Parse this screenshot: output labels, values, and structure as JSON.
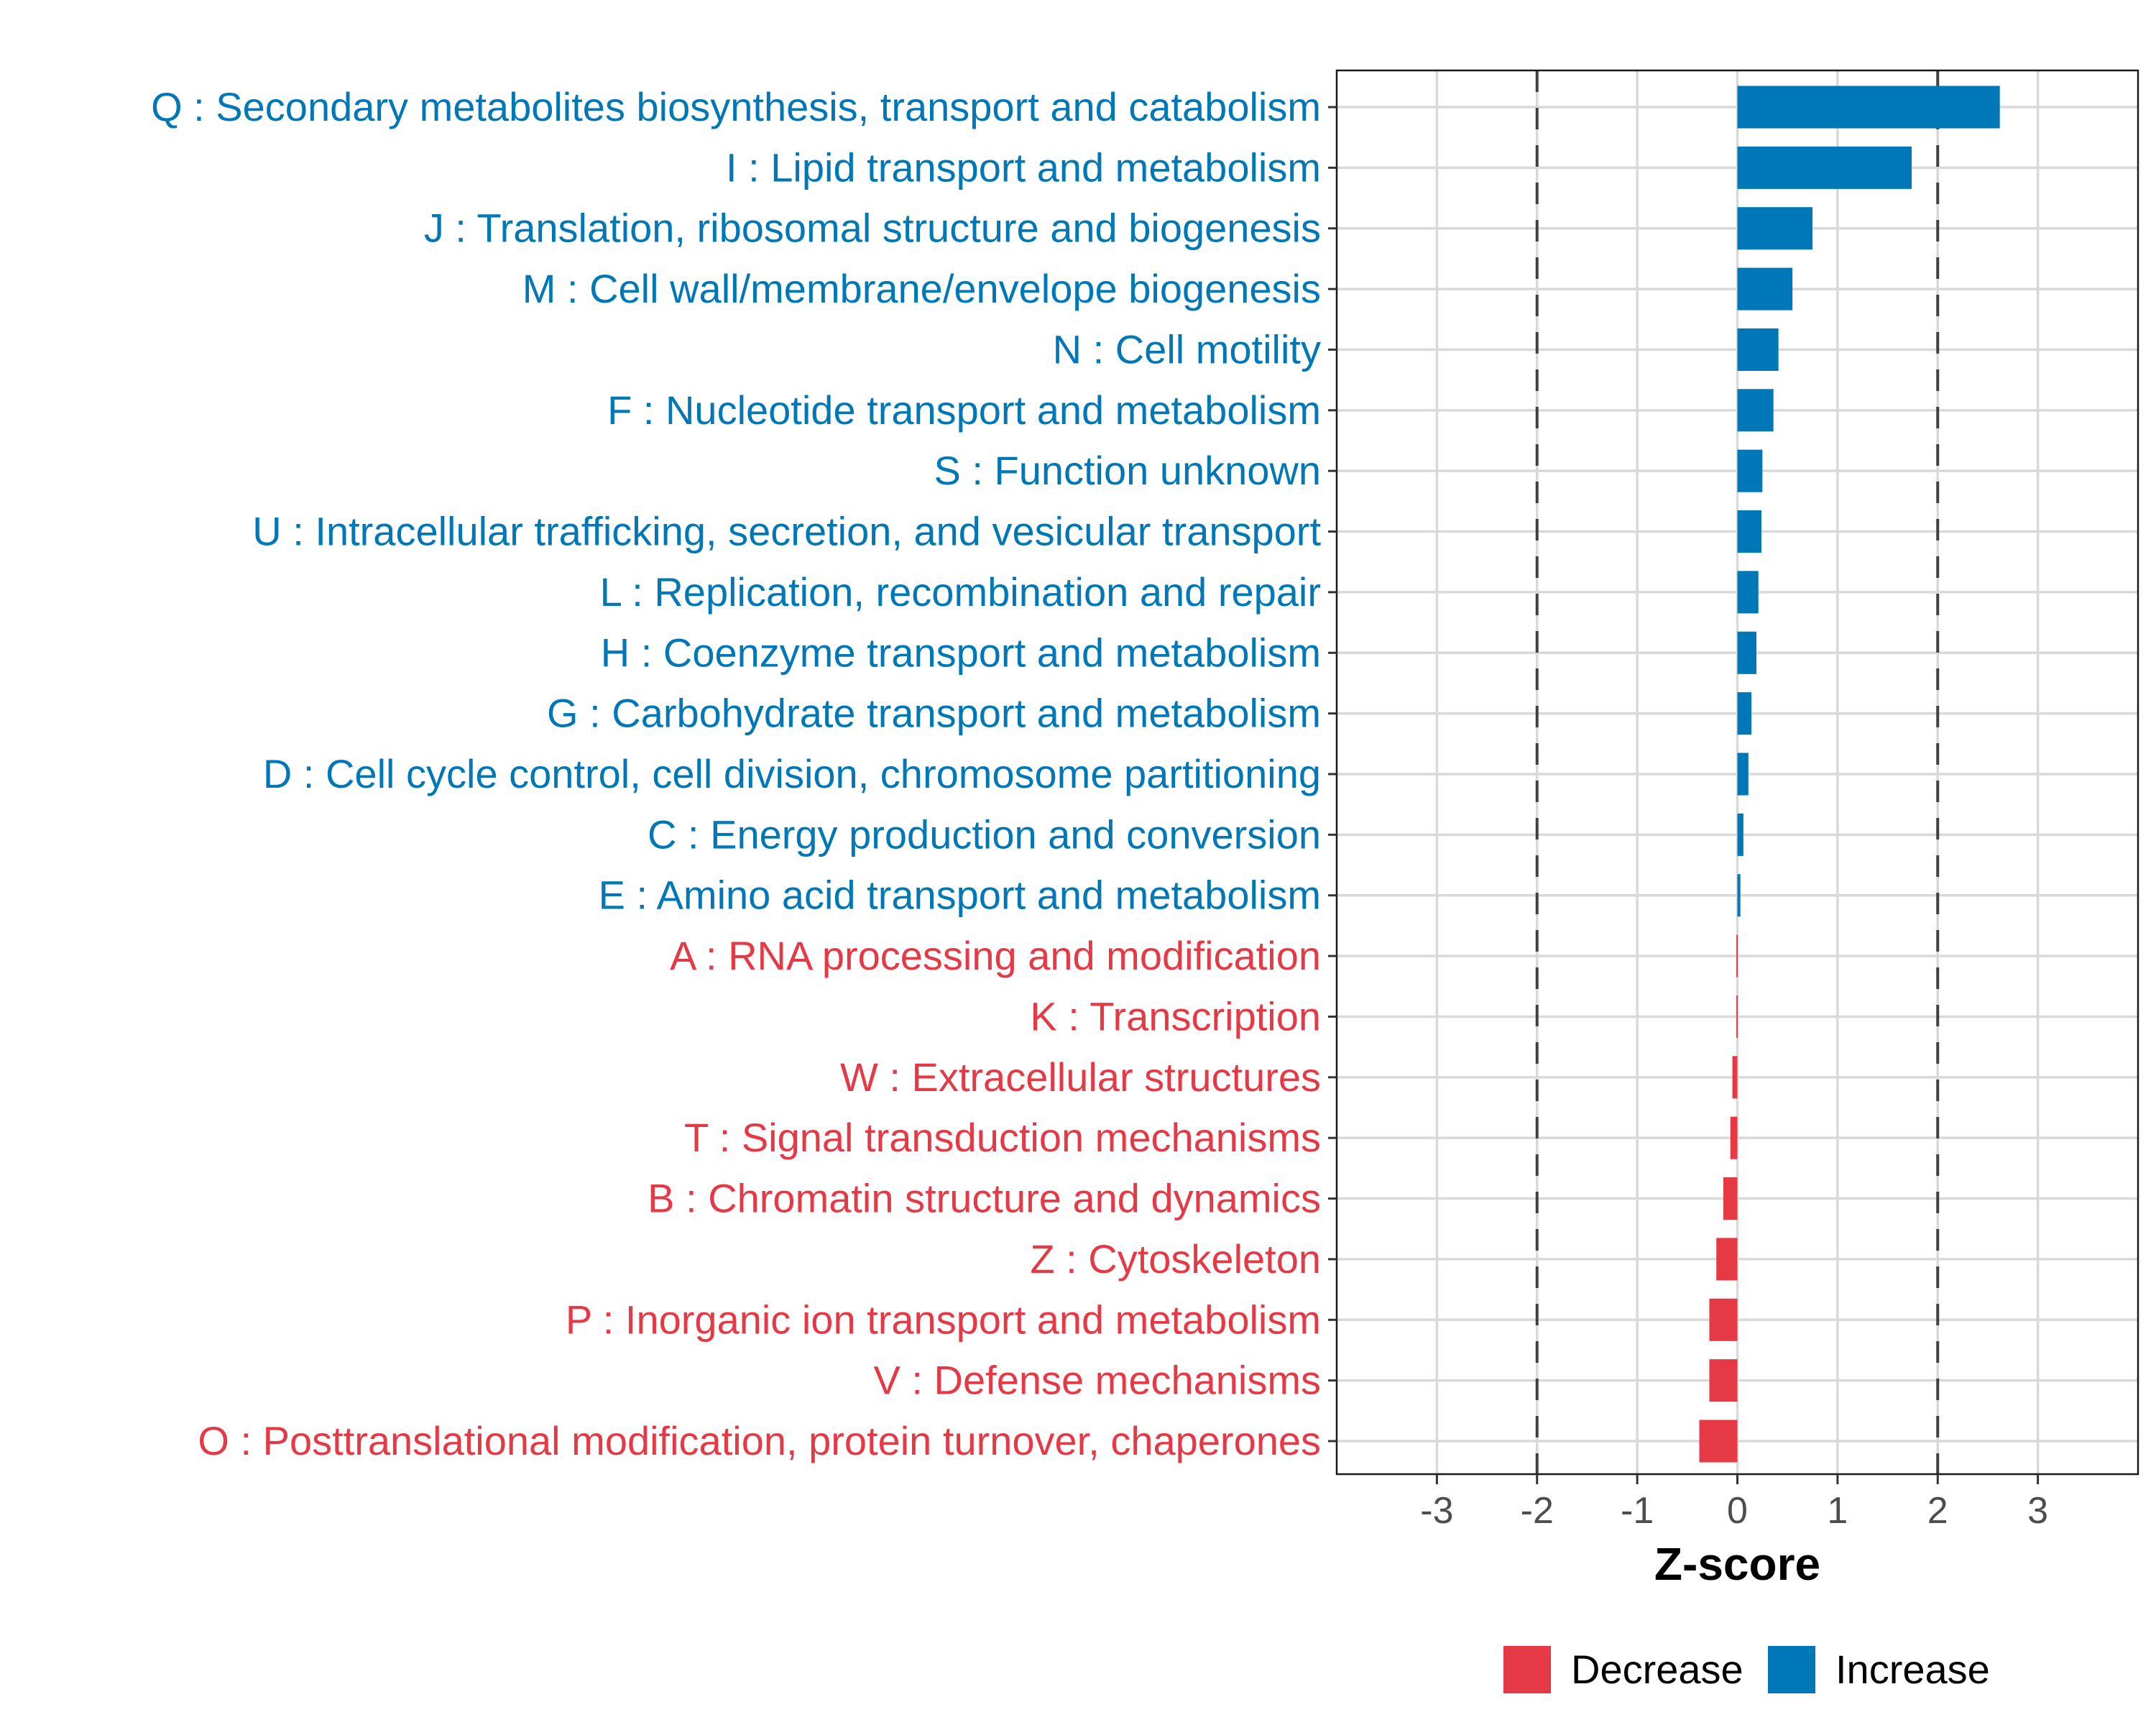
{
  "chart_data": {
    "type": "bar",
    "orientation": "horizontal",
    "title": "",
    "xlabel": "Z-score",
    "ylabel": "",
    "xlim": [
      -4,
      4
    ],
    "xticks": [
      -3,
      -2,
      -1,
      0,
      1,
      2,
      3
    ],
    "xtick_labels": [
      "-3",
      "-2",
      "-1",
      "0",
      "1",
      "2",
      "3"
    ],
    "grid": true,
    "reference_lines": [
      {
        "x": -2,
        "style": "dashed"
      },
      {
        "x": 2,
        "style": "dashed"
      }
    ],
    "categories": [
      "Q : Secondary metabolites biosynthesis, transport and catabolism",
      "I : Lipid transport and metabolism",
      "J : Translation, ribosomal structure and biogenesis",
      "M : Cell wall/membrane/envelope biogenesis",
      "N : Cell motility",
      "F : Nucleotide transport and metabolism",
      "S : Function unknown",
      "U : Intracellular trafficking, secretion, and vesicular transport",
      "L : Replication, recombination and repair",
      "H : Coenzyme transport and metabolism",
      "G : Carbohydrate transport and metabolism",
      "D : Cell cycle control, cell division, chromosome partitioning",
      "C : Energy production and conversion",
      "E : Amino acid transport and metabolism",
      "A : RNA processing and modification",
      "K : Transcription",
      "W : Extracellular structures",
      "T : Signal transduction mechanisms",
      "B : Chromatin structure and dynamics",
      "Z : Cytoskeleton",
      "P : Inorganic ion transport and metabolism",
      "V : Defense mechanisms",
      "O : Posttranslational modification, protein turnover, chaperones"
    ],
    "values": [
      2.62,
      1.74,
      0.75,
      0.55,
      0.41,
      0.36,
      0.25,
      0.24,
      0.21,
      0.19,
      0.14,
      0.11,
      0.06,
      0.03,
      -0.01,
      -0.01,
      -0.05,
      -0.07,
      -0.14,
      -0.21,
      -0.28,
      -0.28,
      -0.38
    ],
    "groups": [
      "Increase",
      "Increase",
      "Increase",
      "Increase",
      "Increase",
      "Increase",
      "Increase",
      "Increase",
      "Increase",
      "Increase",
      "Increase",
      "Increase",
      "Increase",
      "Increase",
      "Decrease",
      "Decrease",
      "Decrease",
      "Decrease",
      "Decrease",
      "Decrease",
      "Decrease",
      "Decrease",
      "Decrease"
    ],
    "legend": {
      "placement": "bottom",
      "entries": [
        {
          "label": "Decrease",
          "color": "#E63946"
        },
        {
          "label": "Increase",
          "color": "#0077B6"
        }
      ]
    },
    "colors": {
      "Increase": "#0077B6",
      "Decrease": "#E63946"
    }
  }
}
